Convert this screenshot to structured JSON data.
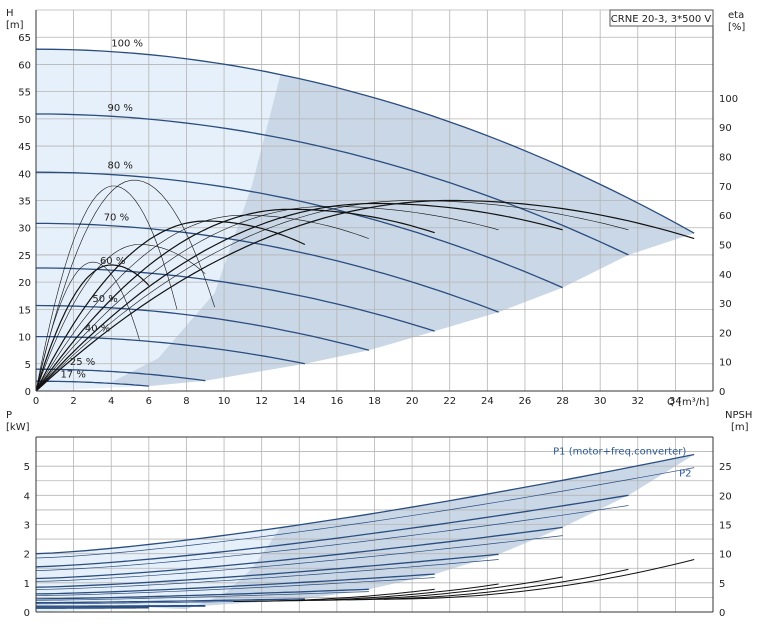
{
  "chart_data": [
    {
      "type": "line",
      "title": "CRNE 20-3, 3*500 V",
      "xlabel": "Q [m³/h]",
      "ylabel_left_name": "H",
      "ylabel_left_unit": "[m]",
      "ylabel_right_name": "eta",
      "ylabel_right_unit": "[%]",
      "xlim": [
        0,
        36
      ],
      "ylim_left": [
        0,
        70
      ],
      "ylim_right": [
        0,
        130
      ],
      "x_ticks": [
        0,
        2,
        4,
        6,
        8,
        10,
        12,
        14,
        16,
        18,
        20,
        22,
        24,
        26,
        28,
        30,
        32,
        34
      ],
      "y_ticks_left": [
        0,
        5,
        10,
        15,
        20,
        25,
        30,
        35,
        40,
        45,
        50,
        55,
        60,
        65
      ],
      "y_ticks_right": [
        0,
        10,
        20,
        30,
        40,
        50,
        60,
        70,
        80,
        90,
        100
      ],
      "grid": true,
      "speed_labels": [
        {
          "text": "100 %",
          "x": 4,
          "y": 62.6
        },
        {
          "text": "90 %",
          "x": 3.8,
          "y": 50.7
        },
        {
          "text": "80 %",
          "x": 3.8,
          "y": 40.1
        },
        {
          "text": "70 %",
          "x": 3.6,
          "y": 30.6
        },
        {
          "text": "60 %",
          "x": 3.4,
          "y": 22.6
        },
        {
          "text": "50 %",
          "x": 3.0,
          "y": 15.6
        },
        {
          "text": "40 %",
          "x": 2.6,
          "y": 10.2
        },
        {
          "text": "25 %",
          "x": 1.8,
          "y": 4.0
        },
        {
          "text": "17 %",
          "x": 1.3,
          "y": 1.7
        }
      ],
      "qh_curves": [
        {
          "speed": "100 %",
          "qmax": 35.0,
          "h0": 62.8,
          "hend": 29.0
        },
        {
          "speed": "90 %",
          "qmax": 31.5,
          "h0": 50.9,
          "hend": 25.0
        },
        {
          "speed": "80 %",
          "qmax": 28.0,
          "h0": 40.2,
          "hend": 19.0
        },
        {
          "speed": "70 %",
          "qmax": 24.6,
          "h0": 30.8,
          "hend": 14.5
        },
        {
          "speed": "60 %",
          "qmax": 21.2,
          "h0": 22.6,
          "hend": 11.0
        },
        {
          "speed": "50 %",
          "qmax": 17.7,
          "h0": 15.7,
          "hend": 7.5
        },
        {
          "speed": "40 %",
          "qmax": 14.3,
          "h0": 10.0,
          "hend": 5.0
        },
        {
          "speed": "25 %",
          "qmax": 9.0,
          "h0": 4.0,
          "hend": 1.9
        },
        {
          "speed": "17 %",
          "qmax": 6.0,
          "h0": 1.8,
          "hend": 0.9
        }
      ],
      "eta_curves": [
        {
          "qmax": 35.0,
          "eta_peak": 65,
          "q_peak": 22.0,
          "eta_end": 52
        },
        {
          "qmax": 31.5,
          "eta_peak": 65,
          "q_peak": 20.0,
          "eta_end": 55
        },
        {
          "qmax": 28.0,
          "eta_peak": 64,
          "q_peak": 18.0,
          "eta_end": 55
        },
        {
          "qmax": 24.6,
          "eta_peak": 63,
          "q_peak": 15.5,
          "eta_end": 55
        },
        {
          "qmax": 21.2,
          "eta_peak": 62,
          "q_peak": 13.5,
          "eta_end": 54
        },
        {
          "qmax": 17.7,
          "eta_peak": 60,
          "q_peak": 11.0,
          "eta_end": 52
        },
        {
          "qmax": 14.3,
          "eta_peak": 58,
          "q_peak": 9.0,
          "eta_end": 50
        },
        {
          "qmax": 9.0,
          "eta_peak": 50,
          "q_peak": 5.5,
          "eta_end": 40
        },
        {
          "qmax": 6.0,
          "eta_peak": 43,
          "q_peak": 4.0,
          "eta_end": 36
        }
      ]
    },
    {
      "type": "line",
      "xlim": [
        0,
        36
      ],
      "ylabel_left_name": "P",
      "ylabel_left_unit": "[kW]",
      "ylabel_right_name": "NPSH",
      "ylabel_right_unit": "[m]",
      "ylim_left": [
        0,
        6
      ],
      "ylim_right": [
        0,
        30
      ],
      "y_ticks_left": [
        0,
        1,
        2,
        3,
        4,
        5
      ],
      "y_ticks_right": [
        0,
        5,
        10,
        15,
        20,
        25
      ],
      "grid": true,
      "series_labels": [
        {
          "text": "P1 (motor+freq.converter)",
          "x": 27.5,
          "y": 5.4
        },
        {
          "text": "P2",
          "x": 34.2,
          "y": 4.65
        }
      ],
      "p_curves": [
        {
          "qmax": 35.0,
          "p1_0": 2.0,
          "p1_end": 5.4,
          "p2_0": 1.85,
          "p2_end": 4.95
        },
        {
          "qmax": 31.5,
          "p1_0": 1.55,
          "p1_end": 4.0,
          "p2_0": 1.42,
          "p2_end": 3.65
        },
        {
          "qmax": 28.0,
          "p1_0": 1.15,
          "p1_end": 2.9,
          "p2_0": 1.05,
          "p2_end": 2.62
        },
        {
          "qmax": 24.6,
          "p1_0": 0.85,
          "p1_end": 1.98,
          "p2_0": 0.77,
          "p2_end": 1.8
        },
        {
          "qmax": 21.2,
          "p1_0": 0.62,
          "p1_end": 1.3,
          "p2_0": 0.56,
          "p2_end": 1.18
        },
        {
          "qmax": 17.7,
          "p1_0": 0.45,
          "p1_end": 0.78,
          "p2_0": 0.4,
          "p2_end": 0.7
        },
        {
          "qmax": 14.3,
          "p1_0": 0.32,
          "p1_end": 0.45,
          "p2_0": 0.28,
          "p2_end": 0.4
        },
        {
          "qmax": 9.0,
          "p1_0": 0.2,
          "p1_end": 0.22,
          "p2_0": 0.17,
          "p2_end": 0.19
        },
        {
          "qmax": 6.0,
          "p1_0": 0.14,
          "p1_end": 0.15,
          "p2_0": 0.12,
          "p2_end": 0.13
        }
      ],
      "npsh_curves": [
        {
          "qmin": 18.5,
          "qmax": 35.0,
          "n_start": 2.2,
          "n_end": 9.0
        },
        {
          "qmin": 16.5,
          "qmax": 31.5,
          "n_start": 2.1,
          "n_end": 7.3
        },
        {
          "qmin": 14.5,
          "qmax": 28.0,
          "n_start": 2.0,
          "n_end": 6.0
        },
        {
          "qmin": 12.5,
          "qmax": 24.6,
          "n_start": 1.9,
          "n_end": 4.8
        },
        {
          "qmin": 10.5,
          "qmax": 21.2,
          "n_start": 1.8,
          "n_end": 3.9
        }
      ]
    }
  ],
  "colors": {
    "curve_blue": "#2a4d80",
    "efficiency_black": "#111111",
    "shade_dark": "#c9d7e6",
    "shade_light": "#e6f0fa",
    "grid": "#b5b5b5",
    "label_blue": "#2d5996"
  }
}
